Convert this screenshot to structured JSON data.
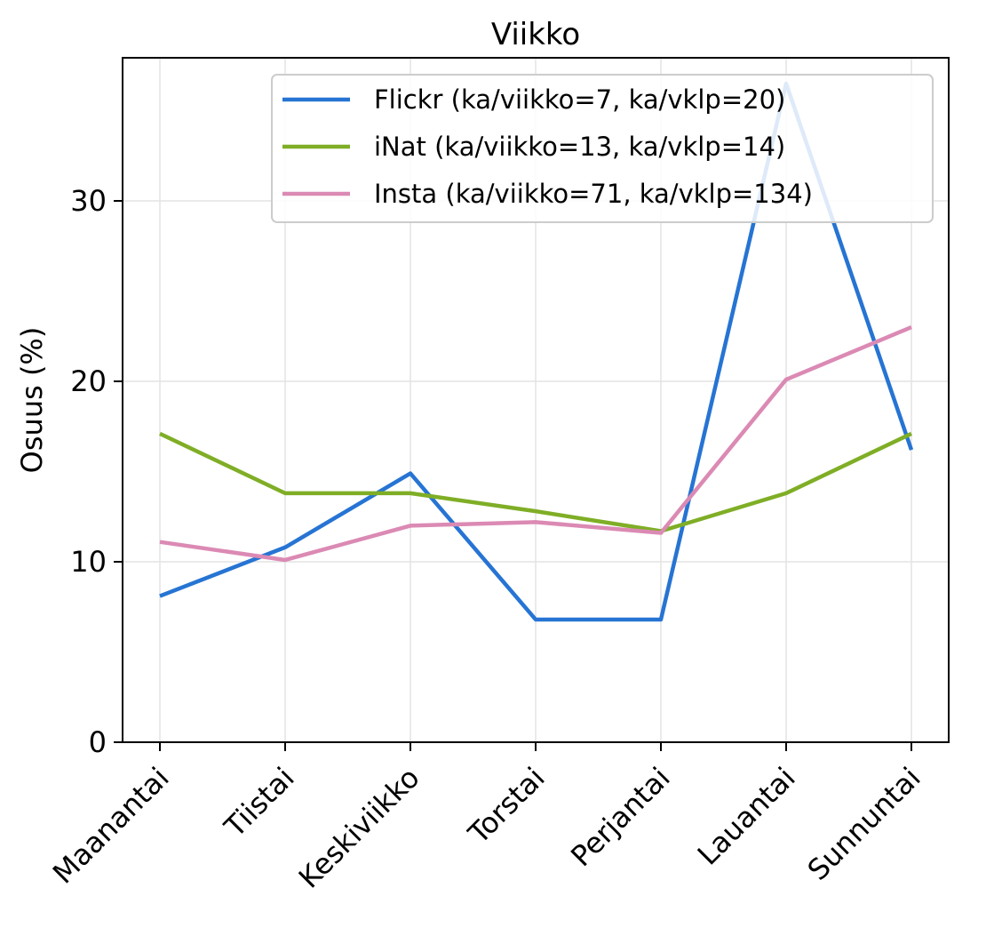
{
  "chart_data": {
    "type": "line",
    "title": "Viikko",
    "xlabel": "",
    "ylabel": "Osuus (%)",
    "ylim": [
      0,
      38
    ],
    "yticks": [
      0,
      10,
      20,
      30
    ],
    "grid": true,
    "legend_position": "top-right",
    "categories": [
      "Maanantai",
      "Tiistai",
      "Keskiviikko",
      "Torstai",
      "Perjantai",
      "Lauantai",
      "Sunnuntai"
    ],
    "series": [
      {
        "name": "Flickr (ka/viikko=7, ka/vklp=20)",
        "color": "#2674d3",
        "values": [
          8.1,
          10.8,
          14.9,
          6.8,
          6.8,
          36.5,
          16.2
        ]
      },
      {
        "name": "iNat (ka/viikko=13, ka/vklp=14)",
        "color": "#7fae26",
        "values": [
          17.1,
          13.8,
          13.8,
          12.8,
          11.7,
          13.8,
          17.1
        ]
      },
      {
        "name": "Insta (ka/viikko=71, ka/vklp=134)",
        "color": "#db8ab4",
        "values": [
          11.1,
          10.1,
          12.0,
          12.2,
          11.6,
          20.1,
          23.0
        ]
      }
    ]
  }
}
